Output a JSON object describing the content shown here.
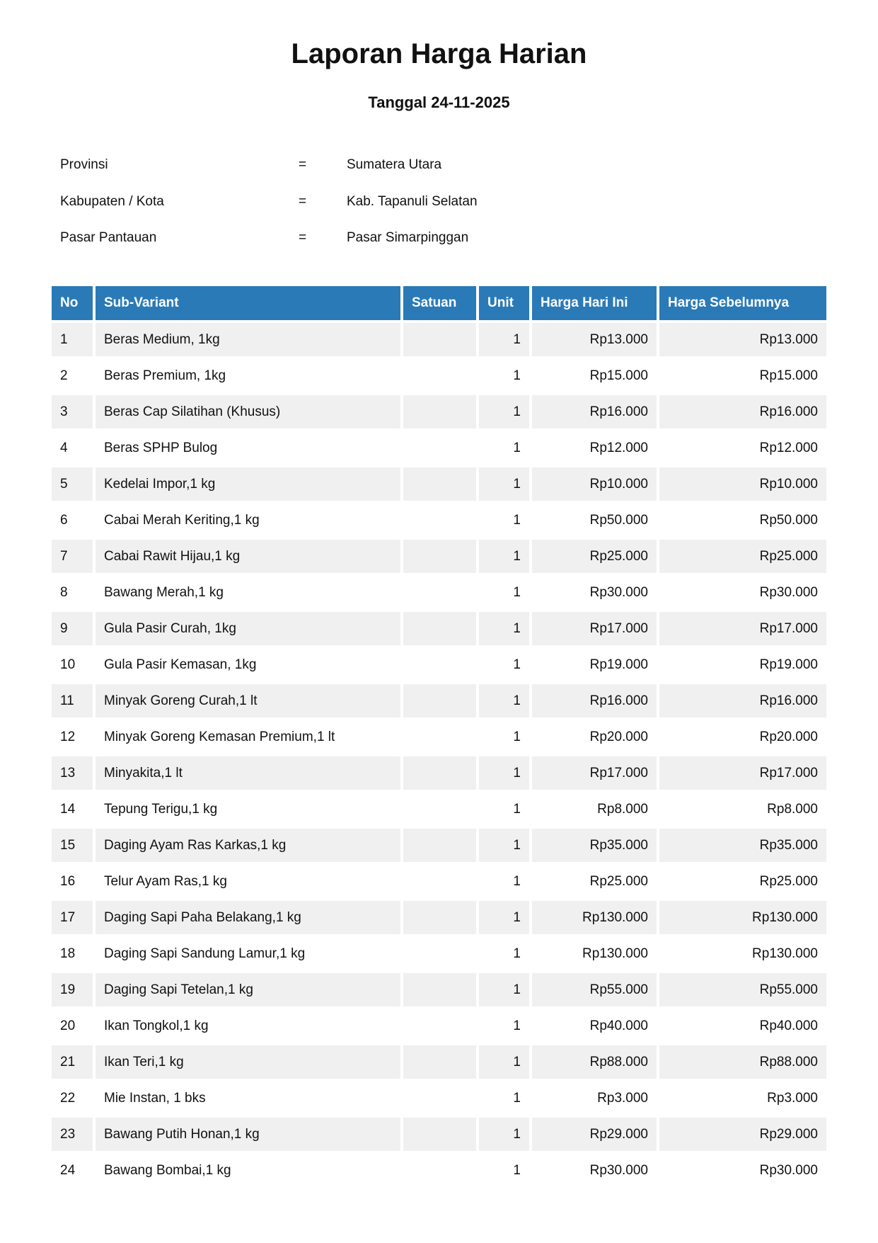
{
  "title": "Laporan Harga Harian",
  "subtitle": "Tanggal 24-11-2025",
  "info": [
    {
      "label": "Provinsi",
      "sep": "=",
      "value": "Sumatera Utara"
    },
    {
      "label": "Kabupaten / Kota",
      "sep": "=",
      "value": "Kab. Tapanuli Selatan"
    },
    {
      "label": "Pasar Pantauan",
      "sep": "=",
      "value": "Pasar Simarpinggan"
    }
  ],
  "colors": {
    "header_bg": "#2a7ab8",
    "stripe": "#f0f0f0"
  },
  "table": {
    "headers": [
      "No",
      "Sub-Variant",
      "Satuan",
      "Unit",
      "Harga Hari Ini",
      "Harga Sebelumnya"
    ],
    "rows": [
      [
        "1",
        "Beras Medium, 1kg",
        "",
        "1",
        "Rp13.000",
        "Rp13.000"
      ],
      [
        "2",
        "Beras Premium, 1kg",
        "",
        "1",
        "Rp15.000",
        "Rp15.000"
      ],
      [
        "3",
        "Beras Cap Silatihan (Khusus)",
        "",
        "1",
        "Rp16.000",
        "Rp16.000"
      ],
      [
        "4",
        "Beras SPHP Bulog",
        "",
        "1",
        "Rp12.000",
        "Rp12.000"
      ],
      [
        "5",
        "Kedelai Impor,1 kg",
        "",
        "1",
        "Rp10.000",
        "Rp10.000"
      ],
      [
        "6",
        "Cabai Merah Keriting,1 kg",
        "",
        "1",
        "Rp50.000",
        "Rp50.000"
      ],
      [
        "7",
        "Cabai Rawit Hijau,1 kg",
        "",
        "1",
        "Rp25.000",
        "Rp25.000"
      ],
      [
        "8",
        "Bawang Merah,1 kg",
        "",
        "1",
        "Rp30.000",
        "Rp30.000"
      ],
      [
        "9",
        "Gula Pasir Curah, 1kg",
        "",
        "1",
        "Rp17.000",
        "Rp17.000"
      ],
      [
        "10",
        "Gula Pasir Kemasan, 1kg",
        "",
        "1",
        "Rp19.000",
        "Rp19.000"
      ],
      [
        "11",
        "Minyak Goreng Curah,1 lt",
        "",
        "1",
        "Rp16.000",
        "Rp16.000"
      ],
      [
        "12",
        "Minyak Goreng Kemasan Premium,1 lt",
        "",
        "1",
        "Rp20.000",
        "Rp20.000"
      ],
      [
        "13",
        "Minyakita,1 lt",
        "",
        "1",
        "Rp17.000",
        "Rp17.000"
      ],
      [
        "14",
        "Tepung Terigu,1 kg",
        "",
        "1",
        "Rp8.000",
        "Rp8.000"
      ],
      [
        "15",
        "Daging Ayam Ras Karkas,1 kg",
        "",
        "1",
        "Rp35.000",
        "Rp35.000"
      ],
      [
        "16",
        "Telur Ayam Ras,1 kg",
        "",
        "1",
        "Rp25.000",
        "Rp25.000"
      ],
      [
        "17",
        "Daging Sapi Paha Belakang,1 kg",
        "",
        "1",
        "Rp130.000",
        "Rp130.000"
      ],
      [
        "18",
        "Daging Sapi Sandung Lamur,1 kg",
        "",
        "1",
        "Rp130.000",
        "Rp130.000"
      ],
      [
        "19",
        "Daging Sapi Tetelan,1 kg",
        "",
        "1",
        "Rp55.000",
        "Rp55.000"
      ],
      [
        "20",
        "Ikan Tongkol,1 kg",
        "",
        "1",
        "Rp40.000",
        "Rp40.000"
      ],
      [
        "21",
        "Ikan Teri,1 kg",
        "",
        "1",
        "Rp88.000",
        "Rp88.000"
      ],
      [
        "22",
        "Mie Instan, 1 bks",
        "",
        "1",
        "Rp3.000",
        "Rp3.000"
      ],
      [
        "23",
        "Bawang Putih Honan,1 kg",
        "",
        "1",
        "Rp29.000",
        "Rp29.000"
      ],
      [
        "24",
        "Bawang Bombai,1 kg",
        "",
        "1",
        "Rp30.000",
        "Rp30.000"
      ]
    ]
  }
}
